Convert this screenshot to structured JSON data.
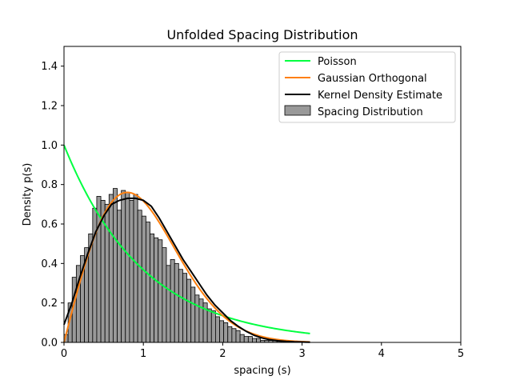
{
  "chart_data": {
    "type": "bar",
    "title": "Unfolded Spacing Distribution",
    "xlabel": "spacing (s)",
    "ylabel": "Density p(s)",
    "xlim": [
      0,
      5
    ],
    "ylim": [
      0,
      1.5
    ],
    "xticks": [
      "0",
      "1",
      "2",
      "3",
      "4",
      "5"
    ],
    "yticks": [
      "0.0",
      "0.2",
      "0.4",
      "0.6",
      "0.8",
      "1.0",
      "1.2",
      "1.4"
    ],
    "xtick_values": [
      0,
      1,
      2,
      3,
      4,
      5
    ],
    "ytick_values": [
      0,
      0.2,
      0.4,
      0.6,
      0.8,
      1.0,
      1.2,
      1.4
    ],
    "grid": false,
    "legend_position": "top-right",
    "histogram": {
      "name": "Spacing Distribution",
      "color": "#999999",
      "edgecolor": "#000000",
      "bin_start": 0.0,
      "bin_width": 0.0516,
      "values": [
        0.04,
        0.2,
        0.33,
        0.39,
        0.44,
        0.48,
        0.55,
        0.68,
        0.74,
        0.72,
        0.7,
        0.75,
        0.78,
        0.67,
        0.77,
        0.76,
        0.72,
        0.75,
        0.67,
        0.64,
        0.61,
        0.55,
        0.53,
        0.52,
        0.48,
        0.39,
        0.42,
        0.4,
        0.37,
        0.35,
        0.32,
        0.28,
        0.24,
        0.22,
        0.2,
        0.17,
        0.16,
        0.13,
        0.11,
        0.1,
        0.08,
        0.07,
        0.06,
        0.04,
        0.03,
        0.03,
        0.02,
        0.02,
        0.01,
        0.01,
        0.01,
        0.01,
        0.005,
        0.005,
        0.003,
        0.003,
        0.002,
        0.002,
        0.001,
        0.001
      ]
    },
    "series": [
      {
        "name": "Poisson",
        "color": "#00ff40",
        "curve": "poisson",
        "x_range": [
          0,
          3.1
        ]
      },
      {
        "name": "Gaussian Orthogonal",
        "color": "#ff7f0e",
        "curve": "goe",
        "x_range": [
          0,
          3.1
        ]
      },
      {
        "name": "Kernel Density Estimate",
        "color": "#000000",
        "curve": "kde",
        "x": [
          0.0,
          0.1,
          0.2,
          0.3,
          0.4,
          0.5,
          0.6,
          0.7,
          0.8,
          0.9,
          1.0,
          1.1,
          1.2,
          1.3,
          1.4,
          1.5,
          1.6,
          1.7,
          1.8,
          1.9,
          2.0,
          2.1,
          2.2,
          2.3,
          2.4,
          2.5,
          2.6,
          2.7,
          2.8,
          2.9,
          3.0,
          3.1
        ],
        "y": [
          0.09,
          0.2,
          0.33,
          0.45,
          0.56,
          0.64,
          0.7,
          0.72,
          0.73,
          0.73,
          0.72,
          0.69,
          0.63,
          0.56,
          0.49,
          0.42,
          0.36,
          0.3,
          0.24,
          0.19,
          0.15,
          0.11,
          0.08,
          0.055,
          0.035,
          0.022,
          0.013,
          0.008,
          0.005,
          0.003,
          0.002,
          0.001
        ]
      }
    ]
  }
}
